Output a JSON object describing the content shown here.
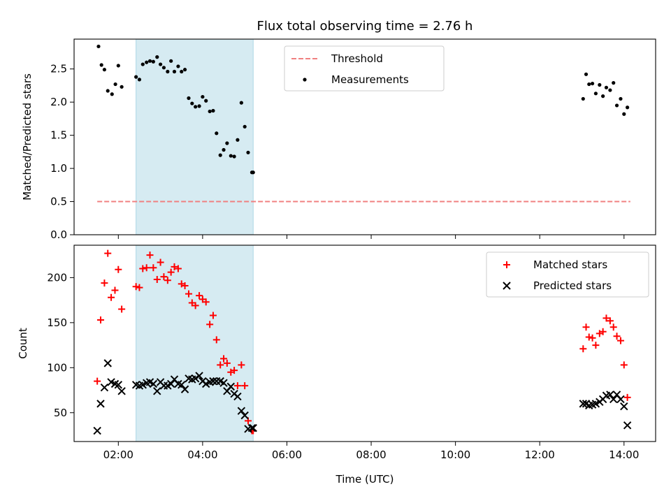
{
  "figure_title": "Flux total observing time = 2.76 h",
  "colors": {
    "threshold": "#f08080",
    "measurements": "#000000",
    "matched": "#ff0000",
    "predicted": "#000000",
    "span_fill": "#add8e6"
  },
  "chart_data": [
    {
      "type": "scatter",
      "title": "Flux total observing time = 2.76 h",
      "xlabel": "",
      "ylabel": "Matched/Predicted stars",
      "x_unit": "hours UTC",
      "xlim": [
        0.95,
        14.75
      ],
      "ylim": [
        0,
        2.95
      ],
      "yticks": [
        0,
        0.5,
        1,
        1.5,
        2,
        2.5
      ],
      "ytick_labels": [
        "0.0",
        "0.5",
        "1.0",
        "1.5",
        "2.0",
        "2.5"
      ],
      "xticks": [
        2,
        4,
        6,
        8,
        10,
        12,
        14
      ],
      "xtick_labels": [
        "",
        "",
        "",
        "",
        "",
        "",
        ""
      ],
      "shaded_span": [
        2.42,
        5.2
      ],
      "legend": {
        "placement": "upper center",
        "entries": [
          "Threshold",
          "Measurements"
        ]
      },
      "series": [
        {
          "name": "Threshold",
          "style": "dashed-line",
          "x": [
            1.5,
            14.15
          ],
          "y": [
            0.5,
            0.5
          ]
        },
        {
          "name": "Measurements",
          "style": "dot",
          "x": [
            1.53,
            1.6,
            1.67,
            1.75,
            1.85,
            1.93,
            2.0,
            2.08,
            2.42,
            2.5,
            2.58,
            2.67,
            2.75,
            2.83,
            2.92,
            3.0,
            3.08,
            3.17,
            3.25,
            3.33,
            3.42,
            3.5,
            3.58,
            3.67,
            3.75,
            3.83,
            3.92,
            4.0,
            4.08,
            4.17,
            4.25,
            4.33,
            4.42,
            4.5,
            4.58,
            4.67,
            4.75,
            4.83,
            4.92,
            5.0,
            5.08,
            5.17,
            5.2,
            13.03,
            13.1,
            13.17,
            13.25,
            13.33,
            13.42,
            13.5,
            13.58,
            13.67,
            13.75,
            13.83,
            13.92,
            14.0,
            14.08
          ],
          "y": [
            2.84,
            2.56,
            2.49,
            2.17,
            2.12,
            2.27,
            2.55,
            2.23,
            2.38,
            2.34,
            2.57,
            2.6,
            2.62,
            2.61,
            2.68,
            2.57,
            2.52,
            2.46,
            2.62,
            2.46,
            2.54,
            2.46,
            2.49,
            2.06,
            1.98,
            1.93,
            1.94,
            2.08,
            2.02,
            1.86,
            1.87,
            1.53,
            1.2,
            1.28,
            1.38,
            1.19,
            1.18,
            1.43,
            1.99,
            1.63,
            1.24,
            0.94,
            0.94,
            2.05,
            2.42,
            2.27,
            2.28,
            2.13,
            2.26,
            2.09,
            2.22,
            2.18,
            2.29,
            1.95,
            2.05,
            1.82,
            1.92
          ]
        }
      ]
    },
    {
      "type": "scatter",
      "title": "",
      "xlabel": "Time (UTC)",
      "ylabel": "Count",
      "x_unit": "hours UTC",
      "xlim": [
        0.95,
        14.75
      ],
      "ylim": [
        18,
        236
      ],
      "yticks": [
        50,
        100,
        150,
        200
      ],
      "ytick_labels": [
        "50",
        "100",
        "150",
        "200"
      ],
      "xticks": [
        2,
        4,
        6,
        8,
        10,
        12,
        14
      ],
      "xtick_labels": [
        "02:00",
        "04:00",
        "06:00",
        "08:00",
        "10:00",
        "12:00",
        "14:00"
      ],
      "shaded_span": [
        2.42,
        5.2
      ],
      "legend": {
        "placement": "upper right",
        "entries": [
          "Matched stars",
          "Predicted stars"
        ]
      },
      "series": [
        {
          "name": "Matched stars",
          "style": "plus",
          "x": [
            1.5,
            1.58,
            1.67,
            1.75,
            1.83,
            1.92,
            2.0,
            2.08,
            2.42,
            2.5,
            2.58,
            2.67,
            2.75,
            2.83,
            2.92,
            3.0,
            3.08,
            3.17,
            3.25,
            3.33,
            3.42,
            3.5,
            3.58,
            3.67,
            3.75,
            3.83,
            3.92,
            4.0,
            4.08,
            4.17,
            4.25,
            4.33,
            4.42,
            4.5,
            4.58,
            4.67,
            4.75,
            4.83,
            4.92,
            5.0,
            5.08,
            5.17,
            5.2,
            13.03,
            13.1,
            13.17,
            13.25,
            13.33,
            13.42,
            13.5,
            13.58,
            13.67,
            13.75,
            13.83,
            13.92,
            14.0,
            14.08
          ],
          "y": [
            85,
            153,
            194,
            227,
            178,
            186,
            209,
            165,
            190,
            189,
            210,
            211,
            225,
            211,
            198,
            217,
            201,
            197,
            206,
            212,
            210,
            193,
            191,
            182,
            172,
            169,
            180,
            176,
            173,
            148,
            158,
            131,
            103,
            110,
            105,
            95,
            97,
            80,
            103,
            80,
            41,
            30,
            30,
            121,
            145,
            134,
            133,
            125,
            138,
            140,
            155,
            152,
            145,
            135,
            130,
            103,
            67
          ]
        },
        {
          "name": "Predicted stars",
          "style": "x",
          "x": [
            1.5,
            1.58,
            1.67,
            1.75,
            1.83,
            1.92,
            2.0,
            2.08,
            2.42,
            2.5,
            2.58,
            2.67,
            2.75,
            2.83,
            2.92,
            3.0,
            3.08,
            3.17,
            3.25,
            3.33,
            3.42,
            3.5,
            3.58,
            3.67,
            3.75,
            3.83,
            3.92,
            4.0,
            4.08,
            4.17,
            4.25,
            4.33,
            4.42,
            4.5,
            4.58,
            4.67,
            4.75,
            4.83,
            4.92,
            5.0,
            5.08,
            5.17,
            5.2,
            13.03,
            13.1,
            13.17,
            13.25,
            13.33,
            13.42,
            13.5,
            13.58,
            13.67,
            13.75,
            13.83,
            13.92,
            14.0,
            14.08
          ],
          "y": [
            30,
            60,
            78,
            105,
            84,
            82,
            81,
            74,
            81,
            80,
            81,
            83,
            84,
            82,
            74,
            84,
            80,
            80,
            82,
            87,
            82,
            81,
            76,
            88,
            87,
            88,
            91,
            85,
            82,
            84,
            85,
            85,
            85,
            83,
            74,
            79,
            71,
            68,
            52,
            47,
            32,
            33,
            33,
            60,
            60,
            58,
            59,
            60,
            62,
            65,
            69,
            70,
            65,
            70,
            65,
            57,
            36
          ]
        }
      ]
    }
  ]
}
